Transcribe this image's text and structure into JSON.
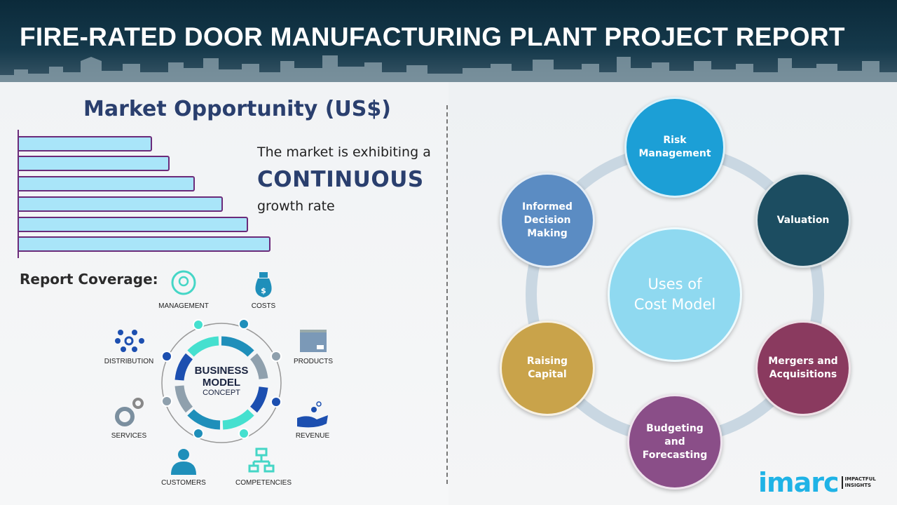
{
  "header": {
    "title": "FIRE-RATED DOOR MANUFACTURING PLANT PROJECT REPORT"
  },
  "market": {
    "title": "Market Opportunity (US$)",
    "line1": "The market is exhibiting a",
    "line2": "CONTINUOUS",
    "line3": "growth rate",
    "bars_relative": [
      0.53,
      0.6,
      0.7,
      0.81,
      0.91,
      1.0
    ],
    "colors": {
      "bar_fill": "#a9e5f9",
      "bar_border": "#6b2b7a"
    }
  },
  "coverage": {
    "title": "Report Coverage:",
    "center": {
      "line1": "BUSINESS",
      "line2": "MODEL",
      "line3": "CONCEPT"
    },
    "items": [
      {
        "label": "MANAGEMENT",
        "icon": "lightbulb-cycle-icon"
      },
      {
        "label": "COSTS",
        "icon": "money-bag-icon"
      },
      {
        "label": "PRODUCTS",
        "icon": "box-icon"
      },
      {
        "label": "REVENUE",
        "icon": "hand-coins-icon"
      },
      {
        "label": "COMPETENCIES",
        "icon": "org-chart-icon"
      },
      {
        "label": "CUSTOMERS",
        "icon": "person-icon"
      },
      {
        "label": "SERVICES",
        "icon": "gears-icon"
      },
      {
        "label": "DISTRIBUTION",
        "icon": "network-icon"
      }
    ]
  },
  "uses": {
    "center": {
      "line1": "Uses of",
      "line2": "Cost Model"
    },
    "items": [
      {
        "line1": "Risk",
        "line2": "Management",
        "line3": "",
        "color": "#1c9fd6"
      },
      {
        "line1": "Valuation",
        "line2": "",
        "line3": "",
        "color": "#1c4d61"
      },
      {
        "line1": "Mergers and",
        "line2": "Acquisitions",
        "line3": "",
        "color": "#8a3a5f"
      },
      {
        "line1": "Budgeting",
        "line2": "and",
        "line3": "Forecasting",
        "color": "#8a4e88"
      },
      {
        "line1": "Raising",
        "line2": "Capital",
        "line3": "",
        "color": "#c9a34a"
      },
      {
        "line1": "Informed",
        "line2": "Decision",
        "line3": "Making",
        "color": "#5b8cc3"
      }
    ]
  },
  "logo": {
    "brand": "imarc",
    "tag1": "IMPACTFUL",
    "tag2": "INSIGHTS"
  }
}
